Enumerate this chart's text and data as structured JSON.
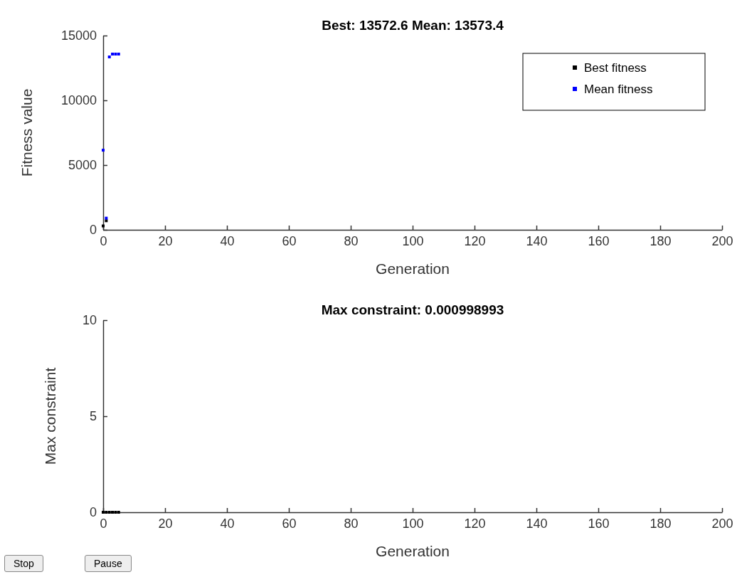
{
  "chart_data": [
    {
      "type": "scatter",
      "title": "Best: 13572.6 Mean: 13573.4",
      "xlabel": "Generation",
      "ylabel": "Fitness value",
      "xlim": [
        0,
        200
      ],
      "xticks": [
        0,
        20,
        40,
        60,
        80,
        100,
        120,
        140,
        160,
        180,
        200
      ],
      "ylim": [
        0,
        15000
      ],
      "yticks": [
        0,
        5000,
        10000,
        15000
      ],
      "marker": "square",
      "legend": "top right",
      "grid": false,
      "series": [
        {
          "name": "Best fitness",
          "color": "#000000",
          "x": [
            0,
            1
          ],
          "values": [
            300,
            700
          ]
        },
        {
          "name": "Mean fitness",
          "color": "#0000ff",
          "x": [
            0,
            1,
            2,
            3,
            4,
            5
          ],
          "values": [
            6150,
            900,
            13350,
            13570,
            13570,
            13570
          ]
        }
      ]
    },
    {
      "type": "scatter",
      "title": "Max constraint: 0.000998993",
      "xlabel": "Generation",
      "ylabel": "Max constraint",
      "xlim": [
        0,
        200
      ],
      "xticks": [
        0,
        20,
        40,
        60,
        80,
        100,
        120,
        140,
        160,
        180,
        200
      ],
      "ylim": [
        0,
        10
      ],
      "yticks": [
        0,
        5,
        10
      ],
      "marker": "square",
      "grid": false,
      "annotations": [
        "Stop",
        "Pause"
      ],
      "series": [
        {
          "color": "#000000",
          "x": [
            0,
            1,
            2,
            3,
            4,
            5
          ],
          "values": [
            0,
            0,
            0,
            0,
            0,
            0
          ]
        }
      ]
    }
  ]
}
